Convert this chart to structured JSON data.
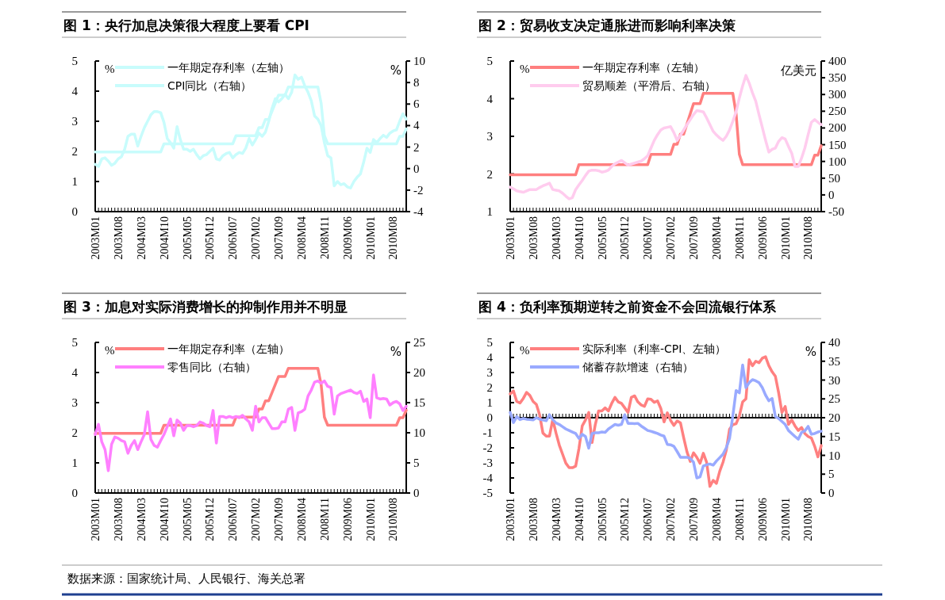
{
  "chart_data": [
    {
      "type": "line",
      "title": "图 1：央行加息决策很大程度上要看 CPI",
      "ylabel": "%",
      "y2label": "%",
      "legend": "top",
      "categories": [
        "2003M01",
        null,
        null,
        null,
        null,
        null,
        null,
        "2003M08",
        null,
        null,
        null,
        null,
        null,
        null,
        "2004M03",
        null,
        null,
        null,
        null,
        null,
        null,
        "2004M10",
        null,
        null,
        null,
        null,
        null,
        null,
        "2005M05",
        null,
        null,
        null,
        null,
        null,
        null,
        "2005M12",
        null,
        null,
        null,
        null,
        null,
        null,
        "2006M07",
        null,
        null,
        null,
        null,
        null,
        null,
        "2007M02",
        null,
        null,
        null,
        null,
        null,
        null,
        "2007M09",
        null,
        null,
        null,
        null,
        null,
        null,
        "2008M04",
        null,
        null,
        null,
        null,
        null,
        null,
        "2008M11",
        null,
        null,
        null,
        null,
        null,
        null,
        "2009M06",
        null,
        null,
        null,
        null,
        null,
        null,
        "2010M01",
        null,
        null,
        null,
        null,
        null,
        null,
        "2010M08",
        null,
        null,
        null,
        null
      ],
      "ylim": [
        0,
        5
      ],
      "yticks": [
        0,
        1,
        2,
        3,
        4,
        5
      ],
      "y2lim": [
        -4,
        10
      ],
      "y2ticks": [
        -4,
        -2,
        0,
        2,
        4,
        6,
        8,
        10
      ],
      "series": [
        {
          "name": "一年期定存利率（左轴）",
          "color": "#c8fcfc",
          "values": [
            1.98,
            1.98,
            1.98,
            1.98,
            1.98,
            1.98,
            1.98,
            1.98,
            1.98,
            1.98,
            1.98,
            1.98,
            1.98,
            1.98,
            1.98,
            1.98,
            1.98,
            1.98,
            1.98,
            1.98,
            1.98,
            2.25,
            2.25,
            2.25,
            2.25,
            2.25,
            2.25,
            2.25,
            2.25,
            2.25,
            2.25,
            2.25,
            2.25,
            2.25,
            2.25,
            2.25,
            2.25,
            2.25,
            2.25,
            2.25,
            2.25,
            2.25,
            2.25,
            2.52,
            2.52,
            2.52,
            2.52,
            2.52,
            2.52,
            2.52,
            2.79,
            2.79,
            3.06,
            3.06,
            3.33,
            3.6,
            3.87,
            3.87,
            3.87,
            4.14,
            4.14,
            4.14,
            4.14,
            4.14,
            4.14,
            4.14,
            4.14,
            4.14,
            4.14,
            3.6,
            2.52,
            2.25,
            2.25,
            2.25,
            2.25,
            2.25,
            2.25,
            2.25,
            2.25,
            2.25,
            2.25,
            2.25,
            2.25,
            2.25,
            2.25,
            2.25,
            2.25,
            2.25,
            2.25,
            2.25,
            2.25,
            2.25,
            2.25,
            2.5,
            2.5,
            2.75
          ]
        },
        {
          "name": "CPI同比（右轴）",
          "color": "#c8fcfc",
          "axis": "y2",
          "values": [
            0.4,
            0.2,
            0.9,
            1.0,
            0.7,
            0.3,
            0.5,
            0.9,
            1.1,
            1.8,
            3.0,
            3.2,
            3.2,
            2.1,
            3.0,
            3.8,
            4.4,
            5.0,
            5.3,
            5.3,
            5.2,
            4.3,
            2.8,
            2.4,
            1.9,
            3.9,
            2.7,
            1.8,
            1.8,
            1.6,
            1.8,
            1.3,
            0.9,
            1.2,
            1.3,
            1.6,
            1.9,
            0.9,
            0.8,
            1.2,
            1.4,
            1.5,
            1.0,
            1.3,
            1.5,
            1.4,
            1.9,
            2.8,
            2.2,
            2.7,
            3.3,
            3.0,
            3.4,
            4.4,
            5.6,
            6.5,
            6.2,
            6.5,
            6.9,
            6.5,
            7.1,
            8.7,
            8.3,
            8.5,
            7.7,
            7.1,
            6.3,
            4.9,
            4.6,
            4.0,
            2.4,
            1.2,
            1.0,
            -1.6,
            -1.2,
            -1.5,
            -1.4,
            -1.7,
            -1.8,
            -1.2,
            -0.8,
            -0.5,
            0.6,
            1.9,
            1.5,
            2.7,
            2.4,
            2.8,
            3.1,
            2.9,
            3.3,
            3.5,
            3.6,
            4.4,
            5.1,
            4.6
          ]
        }
      ]
    },
    {
      "type": "line",
      "title": "图 2：贸易收支决定通胀进而影响利率决策",
      "ylabel": "%",
      "y2label": "亿美元",
      "legend": "top",
      "categories": [
        "2003M01",
        null,
        null,
        null,
        null,
        null,
        null,
        "2003M08",
        null,
        null,
        null,
        null,
        null,
        null,
        "2004M03",
        null,
        null,
        null,
        null,
        null,
        null,
        "2004M10",
        null,
        null,
        null,
        null,
        null,
        null,
        "2005M05",
        null,
        null,
        null,
        null,
        null,
        null,
        "2005M12",
        null,
        null,
        null,
        null,
        null,
        null,
        "2006M07",
        null,
        null,
        null,
        null,
        null,
        null,
        "2007M02",
        null,
        null,
        null,
        null,
        null,
        null,
        "2007M09",
        null,
        null,
        null,
        null,
        null,
        null,
        "2008M04",
        null,
        null,
        null,
        null,
        null,
        null,
        "2008M11",
        null,
        null,
        null,
        null,
        null,
        null,
        "2009M06",
        null,
        null,
        null,
        null,
        null,
        null,
        "2010M01",
        null,
        null,
        null,
        null,
        null,
        null,
        "2010M08",
        null,
        null,
        null,
        null
      ],
      "ylim": [
        1,
        5
      ],
      "yticks": [
        1,
        2,
        3,
        4,
        5
      ],
      "y2lim": [
        -50,
        400
      ],
      "y2ticks": [
        -50,
        0,
        50,
        100,
        150,
        200,
        250,
        300,
        350,
        400
      ],
      "series": [
        {
          "name": "一年期定存利率（左轴）",
          "color": "#ff7f7f",
          "values": [
            1.98,
            1.98,
            1.98,
            1.98,
            1.98,
            1.98,
            1.98,
            1.98,
            1.98,
            1.98,
            1.98,
            1.98,
            1.98,
            1.98,
            1.98,
            1.98,
            1.98,
            1.98,
            1.98,
            1.98,
            1.98,
            2.25,
            2.25,
            2.25,
            2.25,
            2.25,
            2.25,
            2.25,
            2.25,
            2.25,
            2.25,
            2.25,
            2.25,
            2.25,
            2.25,
            2.25,
            2.25,
            2.25,
            2.25,
            2.25,
            2.25,
            2.25,
            2.25,
            2.52,
            2.52,
            2.52,
            2.52,
            2.52,
            2.52,
            2.52,
            2.79,
            2.79,
            3.06,
            3.06,
            3.33,
            3.6,
            3.87,
            3.87,
            3.87,
            4.14,
            4.14,
            4.14,
            4.14,
            4.14,
            4.14,
            4.14,
            4.14,
            4.14,
            4.14,
            3.6,
            2.52,
            2.25,
            2.25,
            2.25,
            2.25,
            2.25,
            2.25,
            2.25,
            2.25,
            2.25,
            2.25,
            2.25,
            2.25,
            2.25,
            2.25,
            2.25,
            2.25,
            2.25,
            2.25,
            2.25,
            2.25,
            2.25,
            2.25,
            2.5,
            2.5,
            2.75
          ]
        },
        {
          "name": "贸易顺差（平滑后、右轴）",
          "color": "#ffccee",
          "axis": "y2",
          "values": [
            23,
            18,
            12,
            10,
            8,
            12,
            16,
            16,
            16,
            22,
            27,
            31,
            35,
            16,
            14,
            12,
            5,
            -4,
            -12,
            -8,
            16,
            30,
            43,
            58,
            71,
            74,
            74,
            72,
            68,
            70,
            74,
            85,
            93,
            98,
            103,
            96,
            89,
            92,
            95,
            98,
            101,
            108,
            117,
            140,
            163,
            180,
            194,
            200,
            202,
            204,
            186,
            163,
            178,
            194,
            210,
            225,
            240,
            252,
            250,
            248,
            230,
            210,
            190,
            179,
            170,
            163,
            175,
            194,
            220,
            248,
            290,
            326,
            357,
            334,
            305,
            280,
            240,
            202,
            163,
            128,
            136,
            140,
            160,
            171,
            167,
            145,
            124,
            85,
            85,
            110,
            140,
            180,
            217,
            225,
            217,
            210
          ]
        }
      ]
    },
    {
      "type": "line",
      "title": "图 3：加息对实际消费增长的抑制作用并不明显",
      "ylabel": "%",
      "y2label": "%",
      "legend": "top",
      "categories": [
        "2003M01",
        null,
        null,
        null,
        null,
        null,
        null,
        "2003M08",
        null,
        null,
        null,
        null,
        null,
        null,
        "2004M03",
        null,
        null,
        null,
        null,
        null,
        null,
        "2004M10",
        null,
        null,
        null,
        null,
        null,
        null,
        "2005M05",
        null,
        null,
        null,
        null,
        null,
        null,
        "2005M12",
        null,
        null,
        null,
        null,
        null,
        null,
        "2006M07",
        null,
        null,
        null,
        null,
        null,
        null,
        "2007M02",
        null,
        null,
        null,
        null,
        null,
        null,
        "2007M09",
        null,
        null,
        null,
        null,
        null,
        null,
        "2008M04",
        null,
        null,
        null,
        null,
        null,
        null,
        "2008M11",
        null,
        null,
        null,
        null,
        null,
        null,
        "2009M06",
        null,
        null,
        null,
        null,
        null,
        null,
        "2010M01",
        null,
        null,
        null,
        null,
        null,
        null,
        "2010M08",
        null,
        null,
        null,
        null
      ],
      "ylim": [
        0,
        5
      ],
      "yticks": [
        0,
        1,
        2,
        3,
        4,
        5
      ],
      "y2lim": [
        0,
        25
      ],
      "y2ticks": [
        0,
        5,
        10,
        15,
        20,
        25
      ],
      "series": [
        {
          "name": "一年期定存利率（左轴）",
          "color": "#ff7f7f",
          "values": [
            1.98,
            1.98,
            1.98,
            1.98,
            1.98,
            1.98,
            1.98,
            1.98,
            1.98,
            1.98,
            1.98,
            1.98,
            1.98,
            1.98,
            1.98,
            1.98,
            1.98,
            1.98,
            1.98,
            1.98,
            1.98,
            2.25,
            2.25,
            2.25,
            2.25,
            2.25,
            2.25,
            2.25,
            2.25,
            2.25,
            2.25,
            2.25,
            2.25,
            2.25,
            2.25,
            2.25,
            2.25,
            2.25,
            2.25,
            2.25,
            2.25,
            2.25,
            2.25,
            2.52,
            2.52,
            2.52,
            2.52,
            2.52,
            2.52,
            2.52,
            2.79,
            2.79,
            3.06,
            3.06,
            3.33,
            3.6,
            3.87,
            3.87,
            3.87,
            4.14,
            4.14,
            4.14,
            4.14,
            4.14,
            4.14,
            4.14,
            4.14,
            4.14,
            4.14,
            3.6,
            2.52,
            2.25,
            2.25,
            2.25,
            2.25,
            2.25,
            2.25,
            2.25,
            2.25,
            2.25,
            2.25,
            2.25,
            2.25,
            2.25,
            2.25,
            2.25,
            2.25,
            2.25,
            2.25,
            2.25,
            2.25,
            2.25,
            2.25,
            2.5,
            2.5,
            2.75
          ]
        },
        {
          "name": "零售同比（右轴）",
          "color": "#ff80ff",
          "axis": "y2",
          "values": [
            9.7,
            11.4,
            8.5,
            7.2,
            3.7,
            8.1,
            9.3,
            9.1,
            8.7,
            8.5,
            6.6,
            7.9,
            8.7,
            7.2,
            8.5,
            9.7,
            13.5,
            8.9,
            7.9,
            7.6,
            8.7,
            9.7,
            11.0,
            12.3,
            9.5,
            12.1,
            11.6,
            10.4,
            11.2,
            11.2,
            11.0,
            11.2,
            11.8,
            11.6,
            11.2,
            11.0,
            13.7,
            8.3,
            12.7,
            12.7,
            12.5,
            12.7,
            12.5,
            12.7,
            12.5,
            12.9,
            12.3,
            11.8,
            10.4,
            14.4,
            11.8,
            12.5,
            12.5,
            11.6,
            10.7,
            10.7,
            10.8,
            11.8,
            11.8,
            13.9,
            14.2,
            10.4,
            13.3,
            13.5,
            13.9,
            16.1,
            17.1,
            18.4,
            18.6,
            18.2,
            18.6,
            17.7,
            17.5,
            13.1,
            16.1,
            16.5,
            16.7,
            16.9,
            17.1,
            16.7,
            16.5,
            16.9,
            15.2,
            15.6,
            12.5,
            19.6,
            15.8,
            15.6,
            15.7,
            15.6,
            14.6,
            15.0,
            15.2,
            14.8,
            13.7,
            14.4
          ]
        }
      ]
    },
    {
      "type": "line",
      "title": "图 4：负利率预期逆转之前资金不会回流银行体系",
      "ylabel": "%",
      "y2label": "%",
      "legend": "top",
      "annotations": [
        "数据来源：国家统计局、人民银行、海关总署"
      ],
      "categories": [
        "2003M01",
        null,
        null,
        null,
        null,
        null,
        null,
        "2003M08",
        null,
        null,
        null,
        null,
        null,
        null,
        "2004M03",
        null,
        null,
        null,
        null,
        null,
        null,
        "2004M10",
        null,
        null,
        null,
        null,
        null,
        null,
        "2005M05",
        null,
        null,
        null,
        null,
        null,
        null,
        "2005M12",
        null,
        null,
        null,
        null,
        null,
        null,
        "2006M07",
        null,
        null,
        null,
        null,
        null,
        null,
        "2007M02",
        null,
        null,
        null,
        null,
        null,
        null,
        "2007M09",
        null,
        null,
        null,
        null,
        null,
        null,
        "2008M04",
        null,
        null,
        null,
        null,
        null,
        null,
        "2008M11",
        null,
        null,
        null,
        null,
        null,
        null,
        "2009M06",
        null,
        null,
        null,
        null,
        null,
        null,
        "2010M01",
        null,
        null,
        null,
        null,
        null,
        null,
        "2010M08",
        null,
        null,
        null,
        null
      ],
      "ylim": [
        -5,
        5
      ],
      "yticks": [
        -5,
        -4,
        -3,
        -2,
        -1,
        0,
        1,
        2,
        3,
        4,
        5
      ],
      "y2lim": [
        0,
        40
      ],
      "y2ticks": [
        0,
        5,
        10,
        15,
        20,
        25,
        30,
        35,
        40
      ],
      "series": [
        {
          "name": "实际利率（利率-CPI、左轴）",
          "color": "#ff8080",
          "values": [
            1.58,
            1.78,
            1.08,
            0.98,
            1.28,
            1.68,
            1.48,
            1.08,
            0.88,
            0.18,
            -1.02,
            -1.22,
            -1.22,
            -0.12,
            -1.02,
            -1.82,
            -2.42,
            -3.02,
            -3.32,
            -3.32,
            -3.22,
            -2.05,
            -0.55,
            -0.15,
            0.35,
            -1.65,
            -0.45,
            0.45,
            0.45,
            0.65,
            0.45,
            0.95,
            1.35,
            1.05,
            0.95,
            0.65,
            0.35,
            1.35,
            1.45,
            1.05,
            0.85,
            0.75,
            1.25,
            1.22,
            1.02,
            1.12,
            0.62,
            -0.28,
            0.32,
            -0.18,
            -0.51,
            -0.21,
            -0.34,
            -1.34,
            -2.27,
            -2.9,
            -2.33,
            -2.63,
            -3.03,
            -2.36,
            -2.96,
            -4.56,
            -4.16,
            -4.36,
            -3.56,
            -2.96,
            -2.16,
            -0.76,
            -0.46,
            -0.4,
            0.12,
            1.05,
            1.25,
            3.85,
            3.45,
            3.75,
            3.65,
            3.95,
            4.05,
            3.45,
            3.05,
            2.75,
            1.65,
            0.35,
            0.75,
            -0.45,
            -0.15,
            -0.55,
            -0.85,
            -0.65,
            -1.05,
            -1.25,
            -1.35,
            -1.9,
            -2.6,
            -1.85
          ]
        },
        {
          "name": "储蓄存款增速（右轴）",
          "color": "#99aaff",
          "axis": "y2",
          "values": [
            21.4,
            18.7,
            20.3,
            19.5,
            19.8,
            19.6,
            19.5,
            19.4,
            20.0,
            19.6,
            19.4,
            19.2,
            20.8,
            19.5,
            18.6,
            18.2,
            17.6,
            17.0,
            16.6,
            16.2,
            15.8,
            14.5,
            15.6,
            15.0,
            11.9,
            15.8,
            16.0,
            16.0,
            16.2,
            16.1,
            17.0,
            17.6,
            18.2,
            18.0,
            18.2,
            20.8,
            18.5,
            18.5,
            18.4,
            18.5,
            17.8,
            17.2,
            16.6,
            16.4,
            16.1,
            15.8,
            15.4,
            15.1,
            12.9,
            12.8,
            12.4,
            11.0,
            9.5,
            9.5,
            9.5,
            9.2,
            8.2,
            4.0,
            4.3,
            7.2,
            7.5,
            7.7,
            7.4,
            8.5,
            9.4,
            10.3,
            12.0,
            14.5,
            20.5,
            27.2,
            26.6,
            34.0,
            28.0,
            29.3,
            30.1,
            29.8,
            29.3,
            28.0,
            26.0,
            24.5,
            25.1,
            20.3,
            19.8,
            19.0,
            18.2,
            16.6,
            15.8,
            15.0,
            14.3,
            16.1,
            16.5,
            17.7,
            15.6,
            15.8,
            16.2,
            16.4
          ]
        }
      ]
    }
  ]
}
